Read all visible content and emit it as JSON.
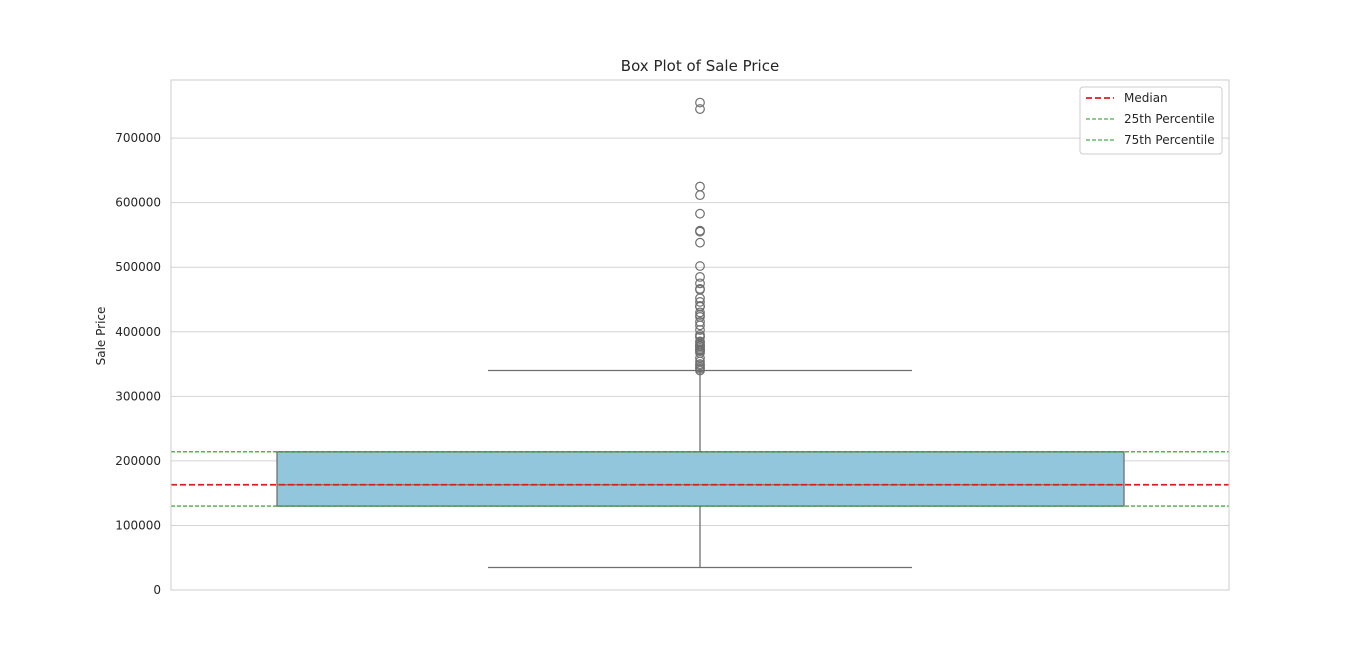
{
  "chart_data": {
    "type": "box",
    "title": "Box Plot of Sale Price",
    "xlabel": "",
    "ylabel": "Sale Price",
    "ylim": [
      0,
      790000
    ],
    "yticks": [
      0,
      100000,
      200000,
      300000,
      400000,
      500000,
      600000,
      700000
    ],
    "ytick_labels": [
      "0",
      "100000",
      "200000",
      "300000",
      "400000",
      "500000",
      "600000",
      "700000"
    ],
    "grid": true,
    "legend_placement": "top-right",
    "box": {
      "whisker_low": 34900,
      "q1": 129975,
      "median": 163000,
      "q3": 214000,
      "whisker_high": 340000,
      "fill_color": "#92c6dc",
      "edge_color": "#6f6f6f"
    },
    "outliers": [
      755000,
      745000,
      625000,
      611657,
      582933,
      556581,
      555000,
      538000,
      501837,
      485000,
      475000,
      466500,
      465000,
      451950,
      446261,
      440000,
      438780,
      430000,
      426000,
      423000,
      415298,
      410000,
      402861,
      395192,
      392500,
      392000,
      385000,
      383970,
      381000,
      378500,
      377500,
      377426,
      375000,
      372500,
      372402,
      370878,
      369900,
      367294,
      359100,
      354000,
      350000,
      348000,
      345000,
      342643,
      340000
    ],
    "reference_lines": [
      {
        "name": "Median",
        "value": 163000,
        "color": "#e41a1c",
        "style": "dashed-bold"
      },
      {
        "name": "25th Percentile",
        "value": 129975,
        "color": "#1a9a1a",
        "style": "dashed"
      },
      {
        "name": "75th Percentile",
        "value": 214000,
        "color": "#1a9a1a",
        "style": "dashed"
      }
    ],
    "legend": [
      "Median",
      "25th Percentile",
      "75th Percentile"
    ]
  }
}
